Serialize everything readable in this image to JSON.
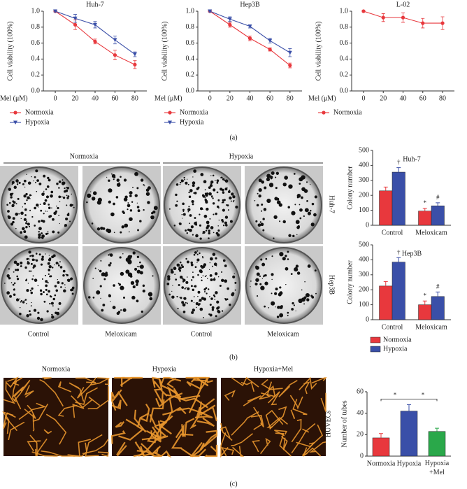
{
  "chart_data": [
    {
      "type": "line",
      "title": "Huh-7",
      "xlabel": "Mel (μM)",
      "ylabel": "Cell viability (100%)",
      "x": [
        0,
        20,
        40,
        60,
        80
      ],
      "xlim": [
        -12,
        92
      ],
      "xticks": [
        0,
        20,
        40,
        60,
        80
      ],
      "ylim": [
        0,
        1.0
      ],
      "yticks": [
        {
          "value": 0,
          "label": "0.0"
        },
        0.2,
        0.4,
        0.6,
        0.8,
        {
          "value": 1,
          "label": "1.0"
        }
      ],
      "series": [
        {
          "name": "Normoxia",
          "color": "#e8383d",
          "marker": "circle",
          "values": [
            1.0,
            0.83,
            0.62,
            0.45,
            0.33
          ],
          "errors": [
            0.01,
            0.06,
            0.03,
            0.06,
            0.05
          ]
        },
        {
          "name": "Hypoxia",
          "color": "#3a4fa8",
          "marker": "triangle-down",
          "values": [
            1.0,
            0.91,
            0.83,
            0.64,
            0.46
          ],
          "errors": [
            0.01,
            0.05,
            0.04,
            0.05,
            0.03
          ]
        }
      ]
    },
    {
      "type": "line",
      "title": "Hep3B",
      "xlabel": "Mel (μM)",
      "ylabel": "Cell viability (100%)",
      "x": [
        0,
        20,
        40,
        60,
        80
      ],
      "xlim": [
        -12,
        92
      ],
      "xticks": [
        0,
        20,
        40,
        60,
        80
      ],
      "ylim": [
        0,
        1.0
      ],
      "yticks": [
        {
          "value": 0,
          "label": "0.0"
        },
        0.2,
        0.4,
        0.6,
        0.8,
        {
          "value": 1,
          "label": "1.0"
        }
      ],
      "series": [
        {
          "name": "Normoxia",
          "color": "#e8383d",
          "marker": "circle",
          "values": [
            1.0,
            0.83,
            0.66,
            0.52,
            0.32
          ],
          "errors": [
            0.01,
            0.03,
            0.03,
            0.02,
            0.03
          ]
        },
        {
          "name": "Hypoxia",
          "color": "#3a4fa8",
          "marker": "triangle-down",
          "values": [
            1.0,
            0.9,
            0.81,
            0.63,
            0.48
          ],
          "errors": [
            0.01,
            0.03,
            0.02,
            0.03,
            0.05
          ]
        }
      ]
    },
    {
      "type": "line",
      "title": "L-02",
      "xlabel": "Mel (μM)",
      "ylabel": "Cell viability (100%)",
      "x": [
        0,
        20,
        40,
        60,
        80
      ],
      "xlim": [
        -12,
        92
      ],
      "xticks": [
        0,
        20,
        40,
        60,
        80
      ],
      "ylim": [
        0,
        1.0
      ],
      "yticks": [
        {
          "value": 0,
          "label": "0.0"
        },
        0.2,
        0.4,
        0.6,
        0.8,
        {
          "value": 1,
          "label": "1.0"
        }
      ],
      "series": [
        {
          "name": "Normoxia",
          "color": "#e8383d",
          "marker": "circle",
          "values": [
            1.0,
            0.92,
            0.92,
            0.85,
            0.85
          ],
          "errors": [
            0.01,
            0.05,
            0.06,
            0.06,
            0.08
          ]
        }
      ]
    },
    {
      "type": "bar",
      "title": "Huh-7",
      "ylabel": "Colony number",
      "categories": [
        "Control",
        "Meloxicam"
      ],
      "ylim": [
        0,
        500
      ],
      "yticks": [
        0,
        100,
        200,
        300,
        400,
        500
      ],
      "legend": false,
      "series": [
        {
          "name": "Normoxia",
          "color": "#e8383d",
          "values": [
            230,
            95
          ],
          "errors": [
            25,
            18
          ],
          "markers": [
            null,
            "*"
          ]
        },
        {
          "name": "Hypoxia",
          "color": "#3a4fa8",
          "values": [
            355,
            130
          ],
          "errors": [
            30,
            20
          ],
          "markers": [
            "†",
            "#"
          ]
        }
      ]
    },
    {
      "type": "bar",
      "title": "Hep3B",
      "ylabel": "Colony number",
      "categories": [
        "Control",
        "Meloxicam"
      ],
      "ylim": [
        0,
        500
      ],
      "yticks": [
        0,
        100,
        200,
        300,
        400,
        500
      ],
      "legend": true,
      "series": [
        {
          "name": "Normoxia",
          "color": "#e8383d",
          "values": [
            225,
            100
          ],
          "errors": [
            30,
            25
          ],
          "markers": [
            null,
            "*"
          ]
        },
        {
          "name": "Hypoxia",
          "color": "#3a4fa8",
          "values": [
            385,
            155
          ],
          "errors": [
            30,
            30
          ],
          "markers": [
            "†",
            "#"
          ]
        }
      ]
    },
    {
      "type": "bar",
      "ylabel": "Number of tubes",
      "side_label": "HUVECs",
      "categories": [
        "Normoxia",
        "Hypoxia",
        "Hypoxia\n+Mel"
      ],
      "values": [
        17,
        42,
        23
      ],
      "errors": [
        4,
        6,
        3
      ],
      "colors": [
        "#e8383d",
        "#3a4fa8",
        "#2aa84a"
      ],
      "ylim": [
        0,
        60
      ],
      "yticks": [
        0,
        20,
        40,
        60
      ],
      "significance_labels": [
        "*",
        "*"
      ]
    }
  ],
  "panel_labels": [
    "(a)",
    "(b)",
    "(c)"
  ],
  "colony_panel": {
    "column_groups": [
      "Normoxia",
      "Hypoxia"
    ],
    "column_labels": [
      "Control",
      "Meloxicam",
      "Control",
      "Meloxicam"
    ],
    "row_labels": [
      "Huh-7",
      "Hep3B"
    ]
  },
  "tube_panel": {
    "column_labels": [
      "Normoxia",
      "Hypoxia",
      "Hypoxia+Mel"
    ]
  }
}
